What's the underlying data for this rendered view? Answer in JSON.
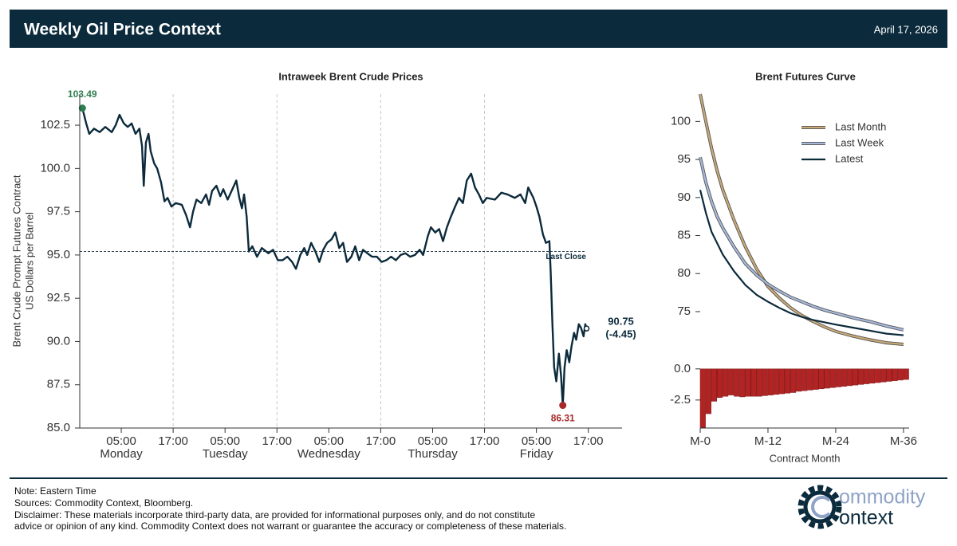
{
  "header": {
    "title": "Weekly Oil Price Context",
    "date": "April 17, 2026"
  },
  "chart_data": [
    {
      "type": "line",
      "title": "Intraweek Brent Crude Prices",
      "ylabel": [
        "Brent Crude Prompt Futures Contract",
        "US Dollars per Barrel"
      ],
      "xlim": [
        -4.6,
        120.8
      ],
      "ylim": [
        85,
        104.3
      ],
      "xticks": [
        {
          "value": 5,
          "label": "05:00"
        },
        {
          "value": 17,
          "label": "17:00"
        },
        {
          "value": 29,
          "label": "05:00"
        },
        {
          "value": 41,
          "label": "17:00"
        },
        {
          "value": 53,
          "label": "05:00"
        },
        {
          "value": 65,
          "label": "17:00"
        },
        {
          "value": 77,
          "label": "05:00"
        },
        {
          "value": 89,
          "label": "17:00"
        },
        {
          "value": 101,
          "label": "05:00"
        },
        {
          "value": 113,
          "label": "17:00"
        }
      ],
      "xtick_days": [
        {
          "value": 5,
          "label": "Monday"
        },
        {
          "value": 29,
          "label": "Tuesday"
        },
        {
          "value": 53,
          "label": "Wednesday"
        },
        {
          "value": 77,
          "label": "Thursday"
        },
        {
          "value": 101,
          "label": "Friday"
        }
      ],
      "vgrid": [
        17,
        41,
        65,
        89
      ],
      "yticks": [
        {
          "value": 85,
          "label": "85.0"
        },
        87.5,
        {
          "value": 90,
          "label": "90.0"
        },
        92.5,
        {
          "value": 95,
          "label": "95.0"
        },
        97.5,
        {
          "value": 100,
          "label": "100.0"
        },
        102.5
      ],
      "reference_line": {
        "value": 95.2,
        "label": "Last Close"
      },
      "change": {
        "value": -4.45,
        "label": "(-4.45)"
      },
      "high_color": "#2e7d4f",
      "low_color": "#a62a2a",
      "x": [
        -4.0,
        -3.1,
        -2.4,
        -1.3,
        0.0,
        1.3,
        2.8,
        3.7,
        4.6,
        5.6,
        6.5,
        7.4,
        8.3,
        9.2,
        9.8,
        10.2,
        10.7,
        11.3,
        11.8,
        12.6,
        13.3,
        14.2,
        15.0,
        15.7,
        16.6,
        17.6,
        19.0,
        20.0,
        20.9,
        21.6,
        22.4,
        23.5,
        24.6,
        25.3,
        26.0,
        27.0,
        27.9,
        28.6,
        29.6,
        30.5,
        31.6,
        32.3,
        32.9,
        33.4,
        34.0,
        34.5,
        35.3,
        36.4,
        37.5,
        39.0,
        40.1,
        41.2,
        42.3,
        43.4,
        44.5,
        45.4,
        46.4,
        47.3,
        48.0,
        48.9,
        49.9,
        50.8,
        51.7,
        52.6,
        53.6,
        54.5,
        55.4,
        56.3,
        57.2,
        58.2,
        59.1,
        60.0,
        60.9,
        61.9,
        63.0,
        64.1,
        65.2,
        66.3,
        67.4,
        68.5,
        69.6,
        70.7,
        71.8,
        72.9,
        74.0,
        74.8,
        75.9,
        76.6,
        77.6,
        78.5,
        79.4,
        80.3,
        81.2,
        82.2,
        83.1,
        84.0,
        84.9,
        85.9,
        86.8,
        87.7,
        88.6,
        89.5,
        91.4,
        92.9,
        94.3,
        96.0,
        97.3,
        98.4,
        99.1,
        100.3,
        101.0,
        101.7,
        102.5,
        103.2,
        104.0,
        104.3,
        104.7,
        105.1,
        105.6,
        106.2,
        106.7,
        107.1,
        107.5,
        108.0,
        108.6,
        109.1,
        109.7,
        110.2,
        110.8,
        111.3,
        111.9,
        112.3,
        112.6
      ],
      "series": [
        {
          "color": "#0b2a3c",
          "values": [
            103.49,
            102.6,
            102.0,
            102.3,
            102.1,
            102.4,
            102.1,
            102.5,
            103.1,
            102.6,
            102.4,
            102.6,
            102.0,
            102.3,
            101.3,
            99.0,
            101.5,
            102.0,
            101.0,
            100.3,
            100.0,
            99.2,
            98.1,
            98.3,
            97.8,
            98.0,
            97.9,
            97.3,
            96.6,
            97.5,
            98.2,
            98.0,
            98.5,
            97.9,
            98.7,
            99.0,
            98.4,
            98.8,
            98.2,
            98.7,
            99.3,
            98.3,
            97.7,
            98.5,
            97.2,
            95.2,
            95.5,
            94.9,
            95.4,
            95.1,
            95.3,
            94.7,
            94.7,
            94.9,
            94.6,
            94.2,
            95.0,
            95.4,
            95.0,
            95.7,
            95.2,
            94.6,
            95.3,
            95.7,
            95.9,
            96.3,
            95.4,
            95.7,
            94.6,
            94.9,
            95.5,
            94.7,
            95.3,
            95.1,
            94.9,
            94.9,
            94.6,
            94.7,
            94.9,
            94.7,
            95.0,
            95.1,
            94.9,
            95.0,
            95.3,
            95.0,
            96.1,
            96.6,
            96.3,
            96.5,
            95.8,
            96.6,
            97.2,
            97.8,
            98.3,
            98.0,
            99.3,
            99.7,
            98.9,
            98.5,
            98.0,
            98.3,
            98.2,
            98.6,
            98.5,
            98.3,
            98.5,
            98.0,
            98.9,
            98.3,
            97.8,
            97.2,
            96.2,
            95.7,
            95.8,
            94.0,
            91.0,
            88.5,
            87.7,
            89.3,
            88.0,
            86.31,
            88.5,
            89.5,
            88.8,
            89.7,
            90.5,
            90.1,
            91.0,
            90.8,
            90.3,
            91.0,
            90.75
          ]
        }
      ]
    },
    {
      "type": "line",
      "title": "Brent Futures Curve",
      "xlim": [
        0,
        37
      ],
      "ylim": [
        70.7,
        103.6
      ],
      "yticks": [
        75,
        80,
        85,
        90,
        95,
        100
      ],
      "legend": "upper right",
      "x": [
        0,
        1,
        2,
        3,
        4,
        6,
        8,
        10,
        12,
        14,
        16,
        18,
        20,
        22,
        24,
        27,
        30,
        33,
        36
      ],
      "series": [
        {
          "name": "Last Month",
          "color": "#c9a978",
          "values": [
            103.6,
            100,
            96.5,
            93.5,
            91,
            87,
            83.5,
            80.6,
            78.3,
            76.8,
            75.5,
            74.5,
            73.7,
            73,
            72.4,
            71.8,
            71.3,
            70.9,
            70.7
          ]
        },
        {
          "name": "Last Week",
          "color": "#a6b9dc",
          "values": [
            95.3,
            92,
            89.5,
            87.5,
            86,
            83.5,
            81.3,
            79.8,
            78.6,
            77.7,
            76.9,
            76.3,
            75.7,
            75.2,
            74.8,
            74.2,
            73.7,
            73.1,
            72.6
          ]
        },
        {
          "name": "Latest",
          "color": "#0b2a3c",
          "values": [
            91,
            88,
            85.5,
            84,
            82.5,
            80.3,
            78.5,
            77.2,
            76.3,
            75.5,
            74.8,
            74.3,
            73.9,
            73.6,
            73.3,
            72.9,
            72.5,
            72.1,
            71.9
          ]
        }
      ]
    },
    {
      "type": "bar",
      "xlabel": "Contract Month",
      "color": "#b22424",
      "xlim": [
        0,
        37
      ],
      "ylim": [
        -4.75,
        0.5
      ],
      "yticks": [
        {
          "value": 0,
          "label": "0.0"
        },
        -2.5
      ],
      "xticks": [
        {
          "value": 0,
          "label": "M-0"
        },
        {
          "value": 12,
          "label": "M-12"
        },
        {
          "value": 24,
          "label": "M-24"
        },
        {
          "value": 36,
          "label": "M-36"
        }
      ],
      "x": [
        0,
        1,
        2,
        3,
        4,
        5,
        6,
        7,
        8,
        9,
        10,
        11,
        12,
        13,
        14,
        15,
        16,
        17,
        18,
        19,
        20,
        21,
        22,
        23,
        24,
        25,
        26,
        27,
        28,
        29,
        30,
        31,
        32,
        33,
        34,
        35,
        36
      ],
      "values": [
        -4.7,
        -3.6,
        -2.6,
        -2.3,
        -2.2,
        -2.1,
        -2.2,
        -2.25,
        -2.2,
        -2.2,
        -2.2,
        -2.15,
        -2.1,
        -2.05,
        -2,
        -1.95,
        -1.9,
        -1.8,
        -1.75,
        -1.7,
        -1.65,
        -1.6,
        -1.55,
        -1.5,
        -1.45,
        -1.4,
        -1.35,
        -1.3,
        -1.25,
        -1.2,
        -1.15,
        -1.1,
        -1.05,
        -1,
        -0.95,
        -0.9,
        -0.85
      ]
    }
  ],
  "footer": {
    "note": "Note: Eastern Time",
    "sources": "Sources: Commodity Context, Bloomberg.",
    "disclaimer": [
      "Disclaimer: These materials incorporate third-party data, are provided for informational purposes only, and do not constitute",
      "advice or opinion of any kind. Commodity Context does not warrant or guarantee the accuracy or completeness of these materials."
    ]
  },
  "logo": {
    "line1": "ommodity",
    "line2": "ontext"
  }
}
